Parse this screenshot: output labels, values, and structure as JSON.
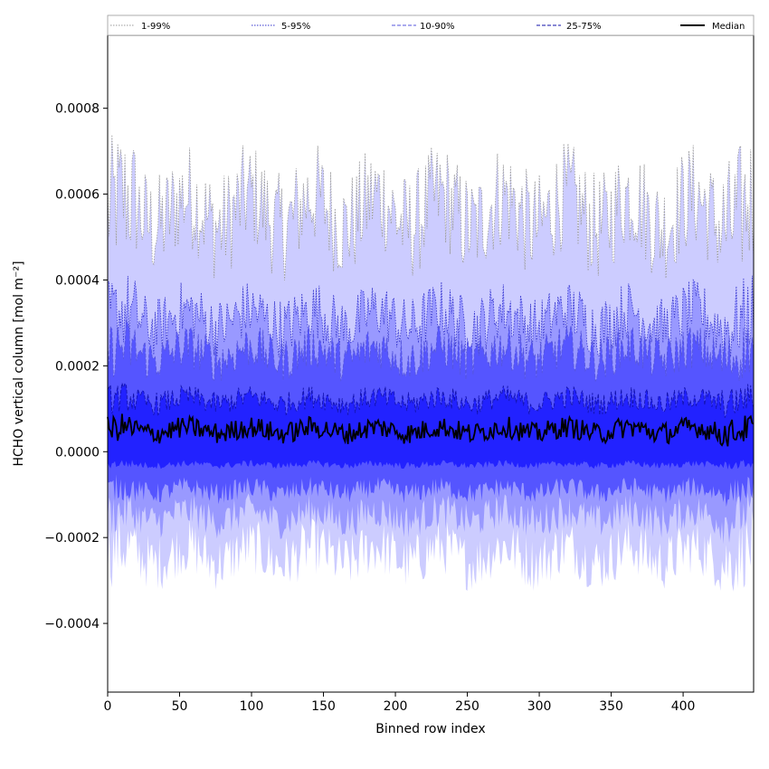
{
  "chart_data": {
    "type": "area",
    "xlabel": "Binned row index",
    "ylabel": "HCHO vertical column [mol m⁻²]",
    "xlim": [
      0,
      449
    ],
    "ylim": [
      -0.00056,
      0.00097
    ],
    "xticks": [
      0,
      50,
      100,
      150,
      200,
      250,
      300,
      350,
      400
    ],
    "yticks": [
      -0.0004,
      -0.0002,
      0.0,
      0.0002,
      0.0004,
      0.0006,
      0.0008
    ],
    "ytick_labels": [
      "−0.0004",
      "−0.0002",
      "0.0000",
      "0.0002",
      "0.0004",
      "0.0006",
      "0.0008"
    ],
    "legend_position": "top",
    "series": [
      {
        "name": "1-99%",
        "color": "#ccccff",
        "edge_color": "#999999",
        "style": "dotted",
        "upper_mean": 0.00056,
        "lower_mean": -0.00024,
        "x": [
          0,
          449
        ]
      },
      {
        "name": "5-95%",
        "color": "#9999ff",
        "edge_color": "#3333cc",
        "style": "dotted",
        "upper_mean": 0.00031,
        "lower_mean": -0.00015,
        "x": [
          0,
          449
        ]
      },
      {
        "name": "10-90%",
        "color": "#5555ff",
        "edge_color": "#5555dd",
        "style": "dashed",
        "upper_mean": 0.00023,
        "lower_mean": -9e-05,
        "x": [
          0,
          449
        ]
      },
      {
        "name": "25-75%",
        "color": "#2222ff",
        "edge_color": "#1111aa",
        "style": "dashed",
        "upper_mean": 0.00012,
        "lower_mean": -3e-05,
        "x": [
          0,
          449
        ]
      },
      {
        "name": "Median",
        "color": "#000000",
        "style": "solid",
        "mean": 5e-05,
        "x": [
          0,
          449
        ]
      }
    ]
  }
}
